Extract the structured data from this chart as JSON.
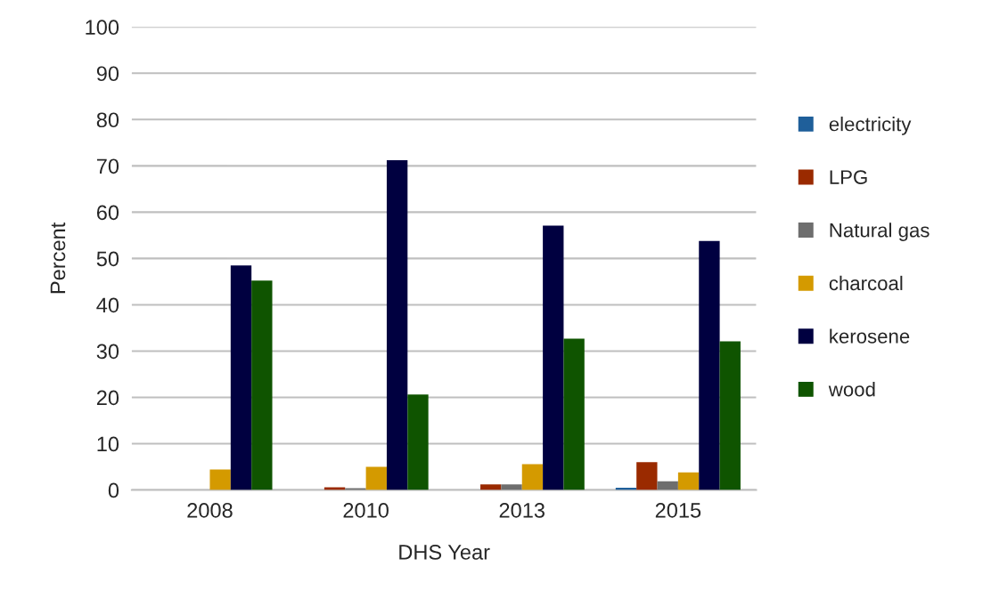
{
  "chart_data": {
    "type": "bar",
    "xlabel": "DHS Year",
    "ylabel": "Percent",
    "categories": [
      "2008",
      "2010",
      "2013",
      "2015"
    ],
    "series": [
      {
        "name": "electricity",
        "color": "#1f5f9a",
        "values": [
          0,
          0,
          0,
          0.5
        ]
      },
      {
        "name": "LPG",
        "color": "#9a2a00",
        "values": [
          0,
          0.6,
          1.2,
          6.0
        ]
      },
      {
        "name": "Natural gas",
        "color": "#6e6e6e",
        "values": [
          0,
          0.4,
          1.2,
          1.9
        ]
      },
      {
        "name": "charcoal",
        "color": "#d49a00",
        "values": [
          4.4,
          5.0,
          5.6,
          3.8
        ]
      },
      {
        "name": "kerosene",
        "color": "#000040",
        "values": [
          48.5,
          71.2,
          57.1,
          53.8
        ]
      },
      {
        "name": "wood",
        "color": "#0f5400",
        "values": [
          45.2,
          20.6,
          32.7,
          32.1
        ]
      }
    ],
    "ylim": [
      0,
      100
    ],
    "yticks": [
      0,
      10,
      20,
      30,
      40,
      50,
      60,
      70,
      80,
      90,
      100
    ],
    "grid": "y",
    "legend": "right"
  }
}
